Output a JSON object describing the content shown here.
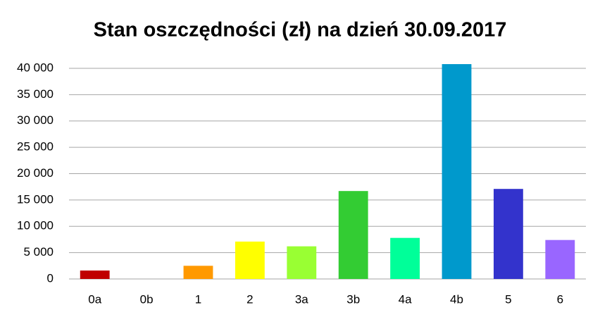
{
  "chart_data": {
    "type": "bar",
    "title": "Stan oszczędności (zł) na dzień 30.09.2017",
    "categories": [
      "0a",
      "0b",
      "1",
      "2",
      "3a",
      "3b",
      "4a",
      "4b",
      "5",
      "6"
    ],
    "values": [
      1600,
      0,
      2500,
      7100,
      6200,
      16700,
      7800,
      40800,
      17100,
      7400
    ],
    "colors": [
      "#c00000",
      "#ff0000",
      "#ff9900",
      "#ffff00",
      "#99ff33",
      "#33cc33",
      "#00ff99",
      "#0099cc",
      "#3333cc",
      "#9966ff"
    ],
    "ylim": [
      0,
      40000
    ],
    "yticks": [
      0,
      {
        "value": 5000,
        "label": "5 000"
      },
      {
        "value": 10000,
        "label": "10 000"
      },
      {
        "value": 15000,
        "label": "15 000"
      },
      {
        "value": 20000,
        "label": "20 000"
      },
      {
        "value": 25000,
        "label": "25 000"
      },
      {
        "value": 30000,
        "label": "30 000"
      },
      {
        "value": 35000,
        "label": "35 000"
      },
      {
        "value": 40000,
        "label": "40 000"
      }
    ],
    "grid": true
  }
}
